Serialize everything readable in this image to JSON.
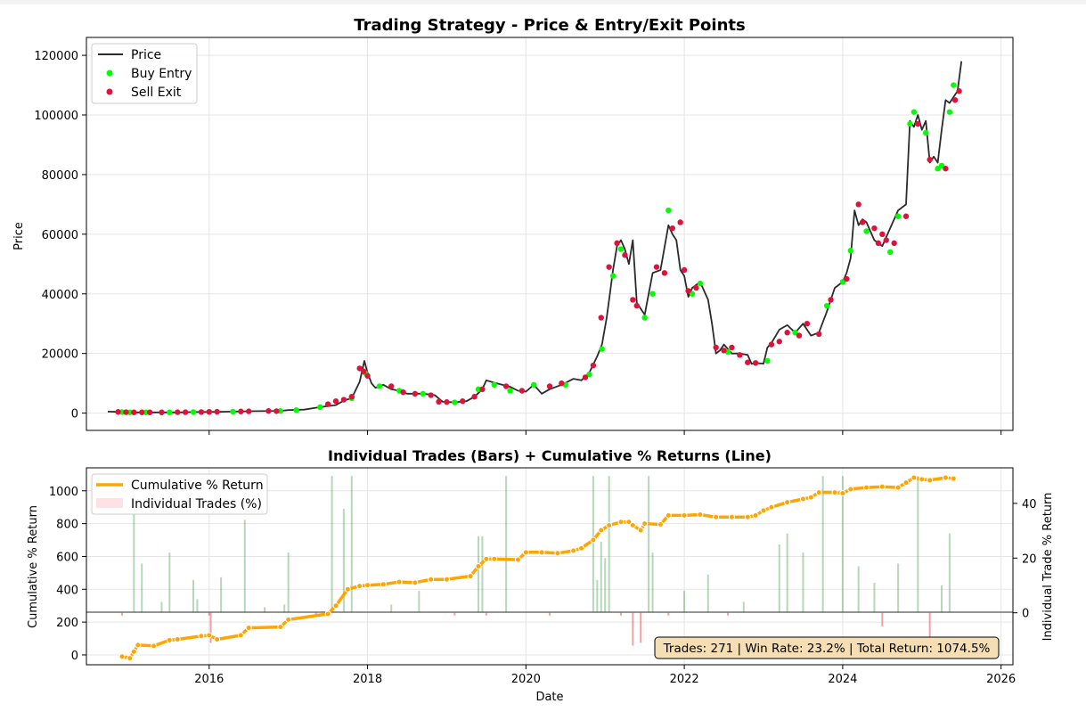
{
  "colors": {
    "price": "#2b2b2b",
    "buy": "#00ff00",
    "sell": "#dc143c",
    "cumulative": "#ffa500",
    "bar_pos": "#2e8b3a",
    "bar_neg": "#e0303a",
    "legend_patch": "#ffe0e4",
    "info_bg": "#f5deb3",
    "grid": "#e5e5e5"
  },
  "chart_data": [
    {
      "type": "line",
      "title": "Trading Strategy - Price & Entry/Exit Points",
      "ylabel": "Price",
      "xlim": [
        2014.45,
        2026.15
      ],
      "ylim": [
        -5800,
        126000
      ],
      "yticks": [
        0,
        20000,
        40000,
        60000,
        80000,
        100000,
        120000
      ],
      "grid": true,
      "legend_position": "top-left",
      "legend": [
        "Price",
        "Buy Entry",
        "Sell Exit"
      ],
      "series": [
        {
          "name": "Price",
          "x": [
            2014.72,
            2014.9,
            2015.0,
            2015.1,
            2015.3,
            2015.6,
            2015.8,
            2016.0,
            2016.3,
            2016.6,
            2016.9,
            2017.0,
            2017.2,
            2017.4,
            2017.6,
            2017.7,
            2017.8,
            2017.9,
            2017.96,
            2018.0,
            2018.05,
            2018.1,
            2018.2,
            2018.3,
            2018.4,
            2018.5,
            2018.7,
            2018.85,
            2018.95,
            2019.1,
            2019.25,
            2019.35,
            2019.45,
            2019.5,
            2019.6,
            2019.7,
            2019.8,
            2019.9,
            2020.0,
            2020.1,
            2020.2,
            2020.3,
            2020.45,
            2020.6,
            2020.7,
            2020.8,
            2020.9,
            2020.96,
            2021.02,
            2021.06,
            2021.1,
            2021.15,
            2021.2,
            2021.25,
            2021.3,
            2021.35,
            2021.4,
            2021.45,
            2021.5,
            2021.55,
            2021.6,
            2021.7,
            2021.8,
            2021.85,
            2021.9,
            2021.95,
            2022.0,
            2022.05,
            2022.1,
            2022.2,
            2022.25,
            2022.3,
            2022.35,
            2022.4,
            2022.45,
            2022.5,
            2022.6,
            2022.7,
            2022.8,
            2022.85,
            2022.9,
            2023.0,
            2023.05,
            2023.1,
            2023.2,
            2023.3,
            2023.4,
            2023.5,
            2023.6,
            2023.7,
            2023.8,
            2023.9,
            2024.0,
            2024.05,
            2024.1,
            2024.15,
            2024.2,
            2024.25,
            2024.3,
            2024.4,
            2024.5,
            2024.6,
            2024.7,
            2024.8,
            2024.85,
            2024.9,
            2024.95,
            2025.0,
            2025.05,
            2025.1,
            2025.15,
            2025.2,
            2025.25,
            2025.3,
            2025.35,
            2025.4,
            2025.45,
            2025.5
          ],
          "y": [
            500,
            350,
            250,
            250,
            250,
            250,
            350,
            400,
            500,
            650,
            750,
            1000,
            1150,
            2000,
            2700,
            4200,
            5000,
            10500,
            17500,
            13500,
            10000,
            8500,
            9500,
            8000,
            7500,
            6500,
            6500,
            6000,
            3800,
            3600,
            4000,
            5500,
            8000,
            11000,
            10200,
            9500,
            8800,
            7500,
            7200,
            9500,
            6500,
            8000,
            9500,
            11500,
            11000,
            13500,
            19000,
            23000,
            32000,
            40000,
            48000,
            56000,
            58000,
            55000,
            50000,
            58000,
            37000,
            35000,
            33000,
            40000,
            47000,
            48000,
            63000,
            60000,
            58000,
            48000,
            46000,
            39000,
            42000,
            44000,
            41000,
            38000,
            30000,
            20000,
            21000,
            23000,
            20000,
            20000,
            19500,
            16500,
            16800,
            16600,
            22000,
            23500,
            28000,
            29500,
            27000,
            30000,
            26000,
            27000,
            34000,
            42000,
            44000,
            47000,
            52000,
            68000,
            63000,
            65000,
            64000,
            58000,
            56000,
            62000,
            68000,
            70000,
            98000,
            96000,
            100000,
            95000,
            98000,
            84000,
            86000,
            84000,
            95000,
            105000,
            104000,
            106000,
            108000,
            118000
          ]
        },
        {
          "name": "Buy Entry",
          "x": [
            2014.9,
            2015.0,
            2015.2,
            2015.5,
            2015.8,
            2016.0,
            2016.3,
            2016.9,
            2017.1,
            2017.4,
            2017.8,
            2017.97,
            2018.15,
            2018.4,
            2018.7,
            2019.1,
            2019.4,
            2019.6,
            2019.8,
            2020.1,
            2020.5,
            2020.8,
            2020.96,
            2021.1,
            2021.2,
            2021.5,
            2021.6,
            2021.8,
            2022.1,
            2022.2,
            2022.55,
            2023.05,
            2023.4,
            2023.8,
            2024.0,
            2024.1,
            2024.3,
            2024.6,
            2024.7,
            2024.85,
            2024.9,
            2025.05,
            2025.2,
            2025.25,
            2025.35,
            2025.4
          ],
          "y": [
            350,
            250,
            250,
            250,
            350,
            400,
            500,
            700,
            1000,
            2000,
            5000,
            13500,
            9000,
            7500,
            6500,
            3600,
            8000,
            9500,
            7500,
            9500,
            9500,
            13000,
            21500,
            46000,
            55000,
            32000,
            40000,
            68000,
            40000,
            43500,
            20500,
            17500,
            27000,
            36000,
            44000,
            54500,
            61000,
            54000,
            66000,
            97000,
            101000,
            94000,
            82000,
            83000,
            101000,
            110000
          ]
        },
        {
          "name": "Sell Exit",
          "x": [
            2014.85,
            2014.95,
            2015.05,
            2015.15,
            2015.25,
            2015.4,
            2015.6,
            2015.7,
            2015.9,
            2016.0,
            2016.1,
            2016.4,
            2016.5,
            2016.75,
            2016.85,
            2017.5,
            2017.6,
            2017.7,
            2017.8,
            2017.9,
            2017.95,
            2018.0,
            2018.3,
            2018.45,
            2018.6,
            2018.8,
            2018.9,
            2019.0,
            2019.2,
            2019.35,
            2019.45,
            2019.75,
            2019.95,
            2020.3,
            2020.45,
            2020.75,
            2020.85,
            2020.95,
            2021.05,
            2021.15,
            2021.25,
            2021.35,
            2021.4,
            2021.65,
            2021.75,
            2021.85,
            2021.95,
            2022.0,
            2022.05,
            2022.15,
            2022.4,
            2022.5,
            2022.6,
            2022.7,
            2022.8,
            2022.9,
            2023.1,
            2023.2,
            2023.3,
            2023.45,
            2023.55,
            2023.7,
            2023.85,
            2024.05,
            2024.2,
            2024.25,
            2024.4,
            2024.45,
            2024.5,
            2024.55,
            2024.65,
            2024.8,
            2024.95,
            2025.1,
            2025.3,
            2025.42,
            2025.47
          ],
          "y": [
            400,
            300,
            250,
            250,
            250,
            250,
            300,
            300,
            350,
            400,
            450,
            550,
            600,
            700,
            650,
            3000,
            4000,
            4500,
            5500,
            15000,
            14000,
            12500,
            9000,
            7000,
            6500,
            6000,
            3800,
            3700,
            4000,
            5500,
            8000,
            9000,
            7500,
            9000,
            10000,
            12000,
            16000,
            32000,
            49000,
            57000,
            53000,
            38000,
            36000,
            49000,
            47000,
            62000,
            64000,
            48000,
            41000,
            42000,
            22000,
            21000,
            22000,
            19500,
            17000,
            16800,
            23000,
            24000,
            27000,
            26000,
            30000,
            26500,
            38000,
            45000,
            70000,
            64000,
            62000,
            57000,
            60000,
            58000,
            57000,
            66000,
            97000,
            85000,
            82000,
            105000,
            108000
          ]
        }
      ]
    },
    {
      "type": "bar",
      "title": "Individual Trades (Bars) + Cumulative % Returns (Line)",
      "xlabel": "Date",
      "ylabel": "Cumulative % Return",
      "ylabel_right": "Individual Trade % Return",
      "xlim": [
        2014.45,
        2026.15
      ],
      "xticks": [
        2016,
        2018,
        2020,
        2022,
        2024,
        2026
      ],
      "ylim": [
        -60,
        1140
      ],
      "yticks": [
        0,
        200,
        400,
        600,
        800,
        1000
      ],
      "ylim_right": [
        -19,
        53
      ],
      "yticks_right": [
        0,
        20,
        40
      ],
      "legend_position": "top-left",
      "legend": [
        "Cumulative % Return",
        "Individual Trades (%)"
      ],
      "annotation": "Trades: 271 | Win Rate: 23.2% | Total Return: 1074.5%",
      "series": [
        {
          "name": "Cumulative % Return",
          "x": [
            2014.9,
            2015.0,
            2015.05,
            2015.1,
            2015.3,
            2015.5,
            2015.6,
            2015.9,
            2016.0,
            2016.1,
            2016.4,
            2016.5,
            2016.9,
            2017.0,
            2017.5,
            2017.6,
            2017.75,
            2017.9,
            2018.0,
            2018.2,
            2018.4,
            2018.6,
            2018.8,
            2019.0,
            2019.3,
            2019.4,
            2019.5,
            2019.6,
            2019.9,
            2020.0,
            2020.2,
            2020.4,
            2020.6,
            2020.7,
            2020.85,
            2020.95,
            2021.05,
            2021.2,
            2021.3,
            2021.35,
            2021.45,
            2021.5,
            2021.7,
            2021.8,
            2022.0,
            2022.2,
            2022.4,
            2022.6,
            2022.8,
            2022.9,
            2023.0,
            2023.1,
            2023.3,
            2023.5,
            2023.6,
            2023.7,
            2023.9,
            2024.0,
            2024.1,
            2024.3,
            2024.5,
            2024.7,
            2024.8,
            2024.9,
            2025.0,
            2025.1,
            2025.3,
            2025.4
          ],
          "y": [
            -10,
            -20,
            20,
            60,
            55,
            90,
            95,
            115,
            120,
            95,
            120,
            165,
            170,
            215,
            250,
            300,
            400,
            420,
            425,
            430,
            445,
            440,
            460,
            460,
            480,
            540,
            585,
            585,
            580,
            625,
            625,
            620,
            635,
            650,
            700,
            760,
            790,
            810,
            810,
            790,
            760,
            800,
            795,
            850,
            850,
            855,
            840,
            840,
            840,
            850,
            880,
            900,
            930,
            950,
            960,
            990,
            990,
            985,
            1010,
            1020,
            1025,
            1020,
            1050,
            1080,
            1070,
            1065,
            1080,
            1075
          ]
        },
        {
          "name": "Individual Trades (%)",
          "x": [
            2014.9,
            2015.05,
            2015.15,
            2015.4,
            2015.5,
            2015.8,
            2015.85,
            2016.0,
            2016.02,
            2016.15,
            2016.45,
            2016.7,
            2016.95,
            2017.0,
            2017.35,
            2017.55,
            2017.7,
            2017.8,
            2018.3,
            2018.65,
            2019.1,
            2019.4,
            2019.45,
            2019.5,
            2019.75,
            2020.3,
            2020.85,
            2020.9,
            2020.95,
            2021.0,
            2021.05,
            2021.2,
            2021.35,
            2021.45,
            2021.55,
            2021.6,
            2021.8,
            2022.0,
            2022.3,
            2022.55,
            2022.75,
            2023.2,
            2023.3,
            2023.5,
            2023.75,
            2024.0,
            2024.2,
            2024.4,
            2024.5,
            2024.7,
            2024.95,
            2025.1,
            2025.25,
            2025.35
          ],
          "y": [
            -1,
            48,
            18,
            4,
            22,
            12,
            5,
            -1,
            -11,
            13,
            34,
            2,
            3,
            22,
            -1,
            50,
            38,
            50,
            3,
            8,
            -1,
            28,
            28,
            -1,
            50,
            -1,
            50,
            12,
            26,
            20,
            50,
            -1,
            -12,
            -11,
            50,
            22,
            -1,
            8,
            14,
            -1,
            4,
            25,
            29,
            22,
            50,
            50,
            17,
            11,
            -5,
            18,
            50,
            -10,
            10,
            29
          ]
        }
      ]
    }
  ]
}
